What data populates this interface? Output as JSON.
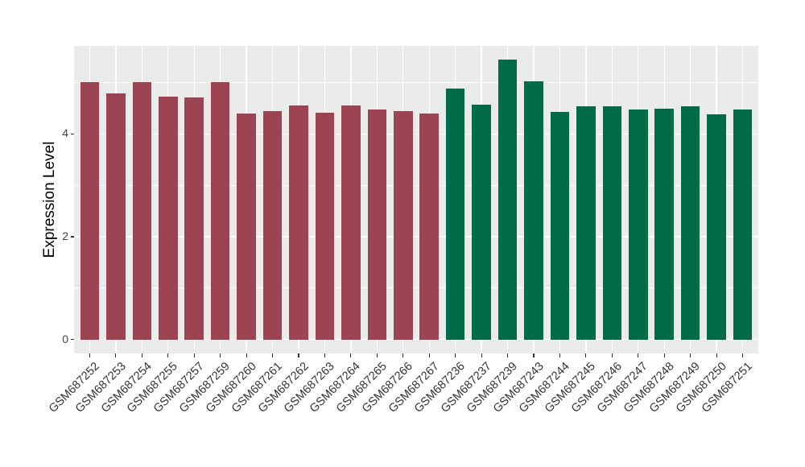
{
  "chart_data": {
    "type": "bar",
    "title": "",
    "xlabel": "",
    "ylabel": "Expression Level",
    "ylim": [
      0,
      5.44
    ],
    "yticks_major": [
      0,
      2,
      4
    ],
    "yticks_minor": [
      1,
      3,
      5
    ],
    "grid": true,
    "legend_position": "none",
    "categories": [
      "GSM687252",
      "GSM687253",
      "GSM687254",
      "GSM687255",
      "GSM687257",
      "GSM687259",
      "GSM687260",
      "GSM687261",
      "GSM687262",
      "GSM687263",
      "GSM687264",
      "GSM687265",
      "GSM687266",
      "GSM687267",
      "GSM687236",
      "GSM687237",
      "GSM687239",
      "GSM687243",
      "GSM687244",
      "GSM687245",
      "GSM687246",
      "GSM687247",
      "GSM687248",
      "GSM687249",
      "GSM687250",
      "GSM687251"
    ],
    "values": [
      5.0,
      4.79,
      5.01,
      4.73,
      4.71,
      5.01,
      4.4,
      4.45,
      4.55,
      4.41,
      4.55,
      4.48,
      4.45,
      4.39,
      4.88,
      4.57,
      5.44,
      5.02,
      4.42,
      4.53,
      4.54,
      4.47,
      4.49,
      4.54,
      4.38,
      4.47
    ],
    "bar_groups": [
      "group1",
      "group1",
      "group1",
      "group1",
      "group1",
      "group1",
      "group1",
      "group1",
      "group1",
      "group1",
      "group1",
      "group1",
      "group1",
      "group1",
      "group2",
      "group2",
      "group2",
      "group2",
      "group2",
      "group2",
      "group2",
      "group2",
      "group2",
      "group2",
      "group2",
      "group2"
    ],
    "colors": {
      "group1": "#9C4452",
      "group2": "#006B47",
      "panel_bg": "#EBEBEB",
      "gridline": "#FFFFFF",
      "tick_mark": "#333333",
      "tick_text": "#404040",
      "axis_title_text": "#000000"
    }
  }
}
